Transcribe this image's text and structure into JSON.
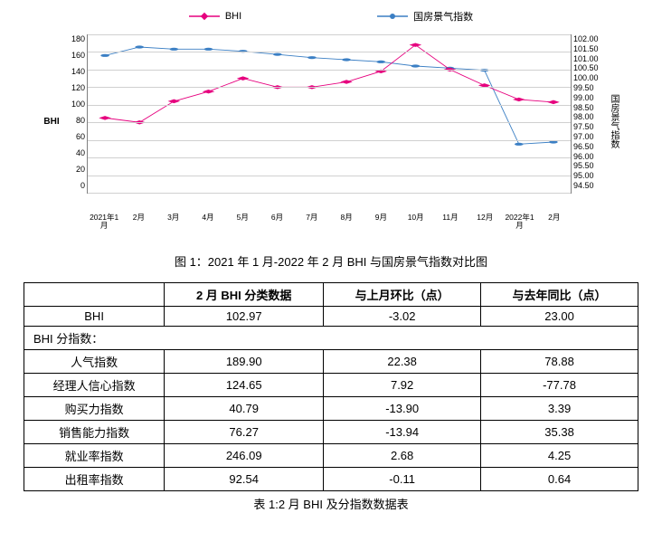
{
  "chart": {
    "legend": {
      "series1": {
        "label": "BHI",
        "color": "#e6007e",
        "marker": "diamond"
      },
      "series2": {
        "label": "国房景气指数",
        "color": "#3b7fc4",
        "marker": "circle"
      }
    },
    "y_left": {
      "label": "BHI",
      "ticks": [
        "180",
        "160",
        "140",
        "120",
        "100",
        "80",
        "60",
        "40",
        "20",
        "0"
      ],
      "min": 0,
      "max": 180
    },
    "y_right": {
      "label": "国房景气指数",
      "ticks": [
        "102.00",
        "101.50",
        "101.00",
        "100.50",
        "100.00",
        "99.50",
        "99.00",
        "98.50",
        "98.00",
        "97.50",
        "97.00",
        "96.50",
        "96.00",
        "95.50",
        "95.00",
        "94.50"
      ],
      "min": 94.5,
      "max": 102.0
    },
    "x_labels": [
      "2021年1月",
      "2月",
      "3月",
      "4月",
      "5月",
      "6月",
      "7月",
      "8月",
      "9月",
      "10月",
      "11月",
      "12月",
      "2022年1月",
      "2月"
    ],
    "series1_values": [
      85,
      79.97,
      104,
      115,
      130,
      120,
      120,
      126,
      138,
      168,
      140,
      122,
      105.99,
      102.97
    ],
    "series2_values": [
      101.0,
      101.4,
      101.3,
      101.3,
      101.2,
      101.05,
      100.9,
      100.8,
      100.7,
      100.5,
      100.4,
      100.3,
      96.8,
      96.9
    ],
    "grid_color": "#d0d0d0",
    "line_width": 1.6,
    "marker_size": 3.2
  },
  "figure_caption": "图 1：2021 年 1 月-2022 年 2 月 BHI 与国房景气指数对比图",
  "table": {
    "headers": [
      "",
      "2 月 BHI 分类数据",
      "与上月环比（点）",
      "与去年同比（点）"
    ],
    "bhi_row": {
      "label": "BHI",
      "v1": "102.97",
      "v2": "-3.02",
      "v3": "23.00"
    },
    "section_label": "BHI 分指数：",
    "rows": [
      {
        "label": "人气指数",
        "v1": "189.90",
        "v2": "22.38",
        "v3": "78.88"
      },
      {
        "label": "经理人信心指数",
        "v1": "124.65",
        "v2": "7.92",
        "v3": "-77.78"
      },
      {
        "label": "购买力指数",
        "v1": "40.79",
        "v2": "-13.90",
        "v3": "3.39"
      },
      {
        "label": "销售能力指数",
        "v1": "76.27",
        "v2": "-13.94",
        "v3": "35.38"
      },
      {
        "label": "就业率指数",
        "v1": "246.09",
        "v2": "2.68",
        "v3": "4.25"
      },
      {
        "label": "出租率指数",
        "v1": "92.54",
        "v2": "-0.11",
        "v3": "0.64"
      }
    ]
  },
  "table_caption": "表 1:2 月 BHI 及分指数数据表"
}
